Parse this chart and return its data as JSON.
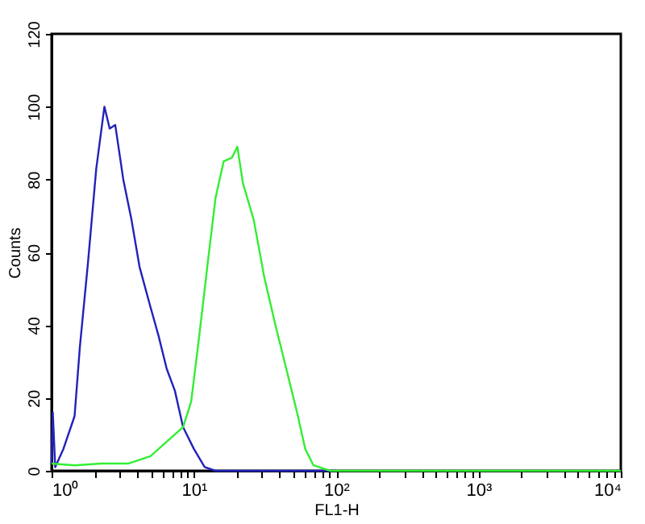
{
  "chart_data": {
    "type": "line",
    "xlabel": "FL1-H",
    "ylabel": "Counts",
    "log": "x",
    "grid": false,
    "xlim": [
      1,
      10000
    ],
    "ylim": [
      0,
      120
    ],
    "xticks": [
      {
        "value": 1,
        "label": "10⁰"
      },
      {
        "value": 2,
        "label": null
      },
      {
        "value": 3,
        "label": null
      },
      {
        "value": 4,
        "label": null
      },
      {
        "value": 5,
        "label": null
      },
      {
        "value": 6,
        "label": null
      },
      {
        "value": 7,
        "label": null
      },
      {
        "value": 8,
        "label": null
      },
      {
        "value": 9,
        "label": null
      },
      {
        "value": 10,
        "label": "10¹"
      },
      {
        "value": 20,
        "label": null
      },
      {
        "value": 30,
        "label": null
      },
      {
        "value": 40,
        "label": null
      },
      {
        "value": 50,
        "label": null
      },
      {
        "value": 60,
        "label": null
      },
      {
        "value": 70,
        "label": null
      },
      {
        "value": 80,
        "label": null
      },
      {
        "value": 90,
        "label": null
      },
      {
        "value": 100,
        "label": "10²"
      },
      {
        "value": 200,
        "label": null
      },
      {
        "value": 300,
        "label": null
      },
      {
        "value": 400,
        "label": null
      },
      {
        "value": 500,
        "label": null
      },
      {
        "value": 600,
        "label": null
      },
      {
        "value": 700,
        "label": null
      },
      {
        "value": 800,
        "label": null
      },
      {
        "value": 900,
        "label": null
      },
      {
        "value": 1000,
        "label": "10³"
      },
      {
        "value": 2000,
        "label": null
      },
      {
        "value": 3000,
        "label": null
      },
      {
        "value": 4000,
        "label": null
      },
      {
        "value": 5000,
        "label": null
      },
      {
        "value": 6000,
        "label": null
      },
      {
        "value": 7000,
        "label": null
      },
      {
        "value": 8000,
        "label": null
      },
      {
        "value": 9000,
        "label": null
      },
      {
        "value": 10000,
        "label": "10⁴"
      }
    ],
    "yticks": [
      0,
      20,
      40,
      60,
      80,
      100,
      120
    ],
    "series": [
      {
        "color": "#2222bb",
        "x": [
          1,
          1.02,
          1.06,
          1.21,
          1.45,
          1.58,
          1.8,
          2.06,
          2.35,
          2.56,
          2.8,
          3.19,
          3.64,
          4.15,
          4.95,
          5.65,
          6.44,
          7.35,
          8.39,
          10,
          11.9,
          14.2,
          30,
          60,
          100
        ],
        "values": [
          2,
          16,
          1,
          6,
          15,
          34,
          57,
          83,
          100,
          94,
          95,
          80,
          69,
          56,
          45,
          37,
          28,
          22,
          12,
          6,
          1,
          0,
          0,
          0,
          0
        ]
      },
      {
        "color": "#33ee33",
        "x": [
          1,
          1.45,
          2.24,
          3.48,
          4.95,
          6.44,
          8.39,
          9.57,
          10.9,
          12.5,
          14.2,
          16.2,
          18.5,
          20.2,
          22.1,
          26.3,
          31.3,
          37.4,
          44.6,
          53.1,
          60.6,
          69.2,
          91,
          300,
          1000,
          10000
        ],
        "values": [
          2,
          1.5,
          2,
          2,
          4,
          8,
          12,
          19,
          37,
          57,
          75,
          85,
          86,
          89,
          79,
          69,
          53,
          40,
          28,
          16,
          6,
          1.5,
          0,
          0,
          0,
          0
        ]
      }
    ]
  }
}
